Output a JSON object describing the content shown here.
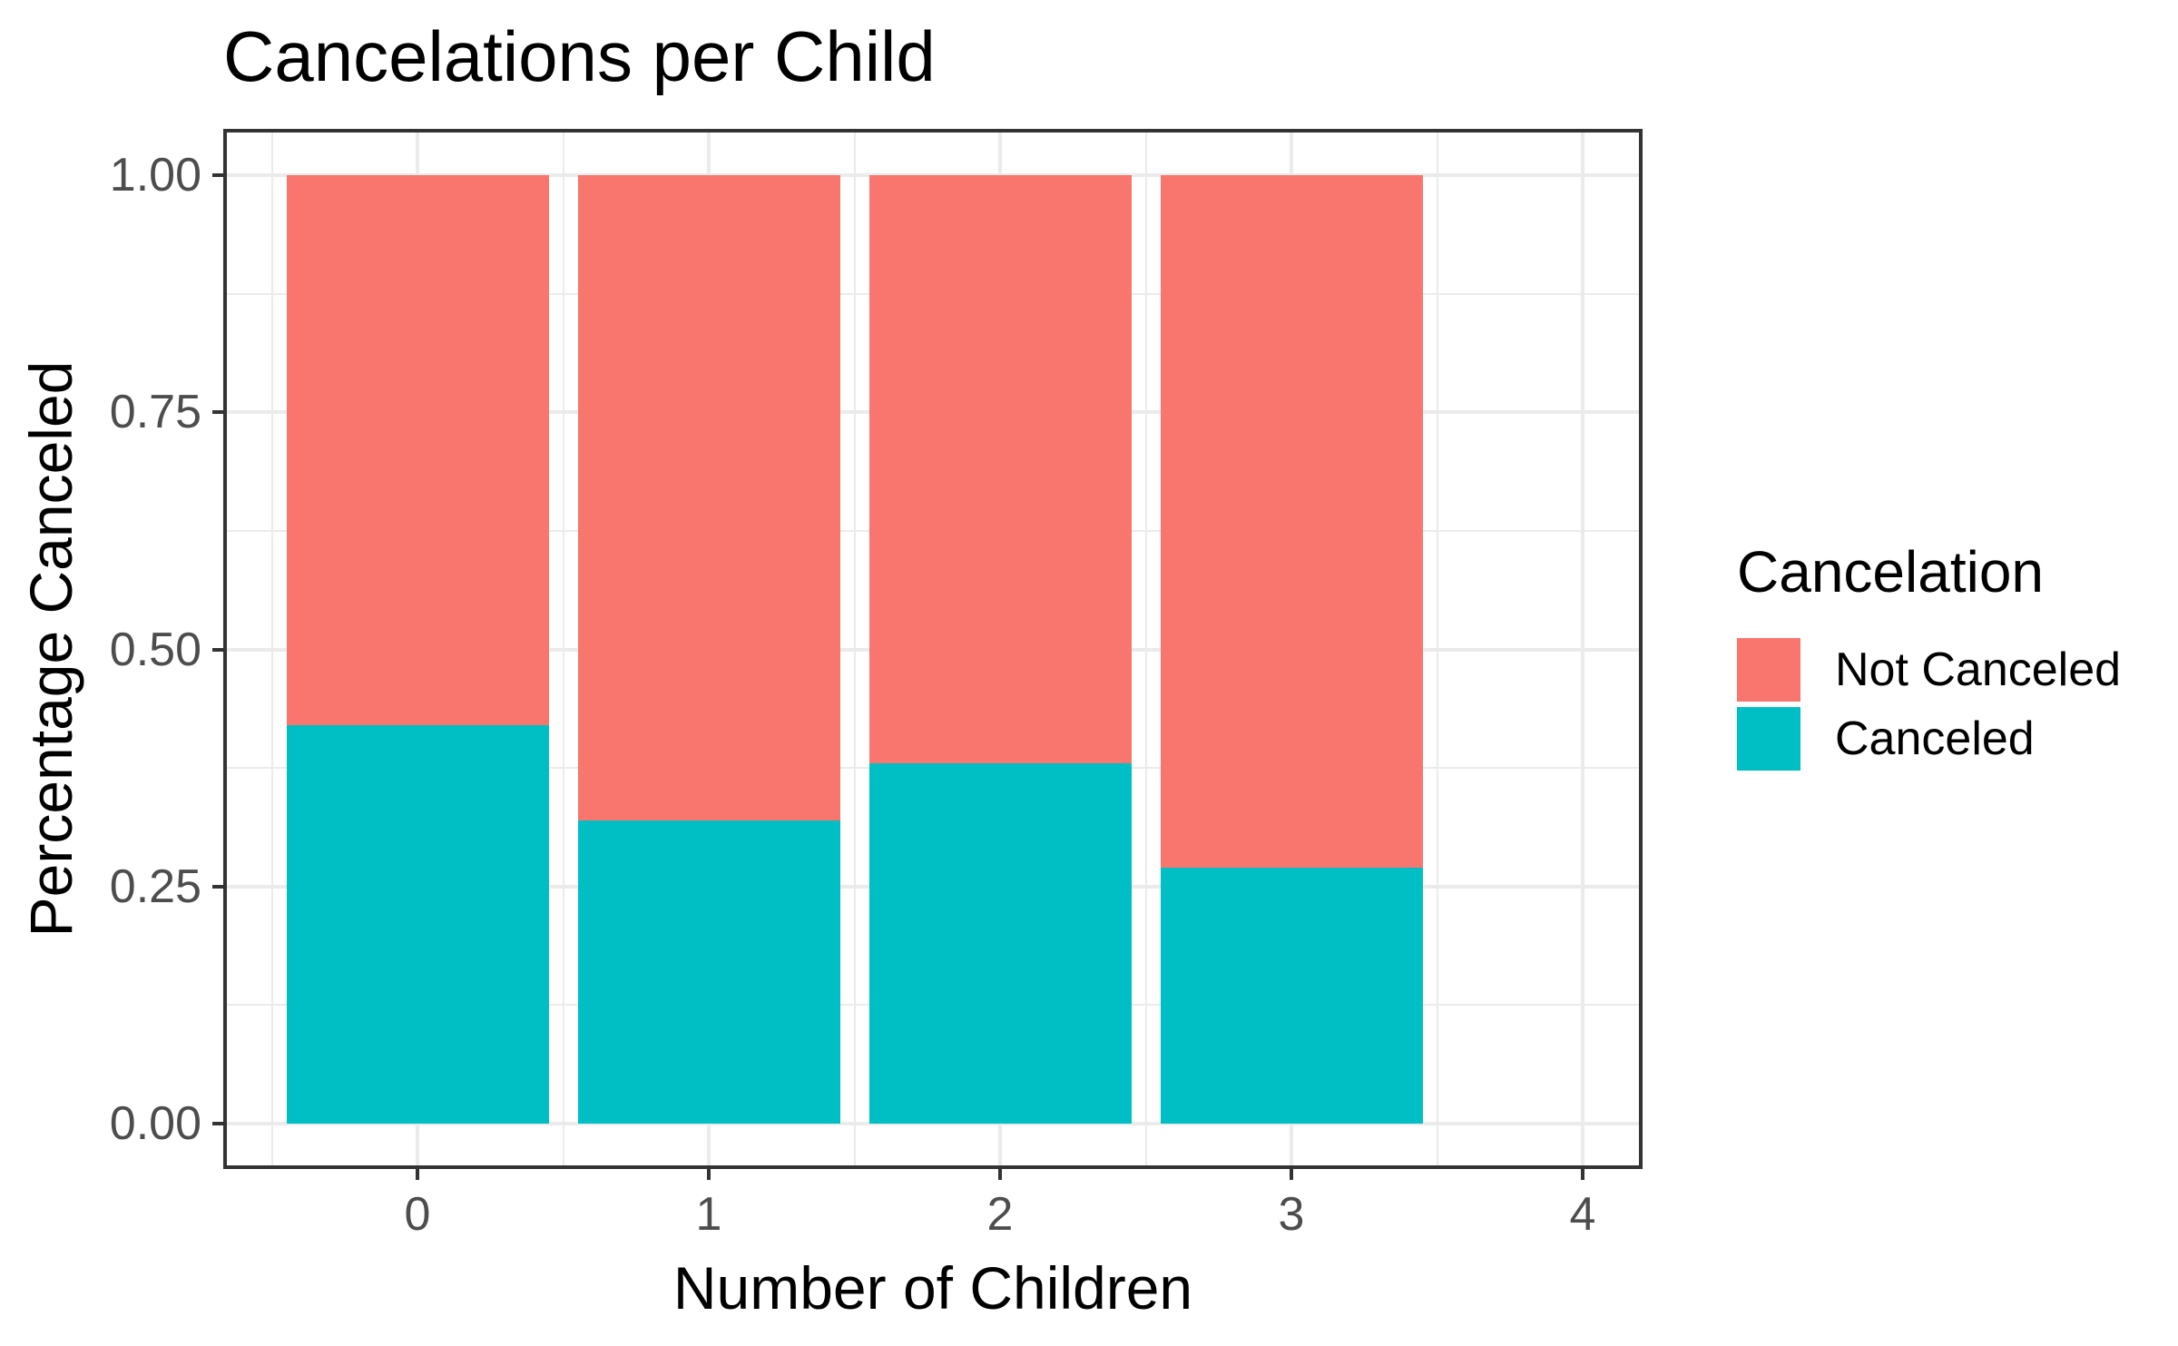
{
  "chart_data": {
    "type": "bar",
    "stacked": true,
    "title": "Cancelations per Child",
    "xlabel": "Number of Children",
    "ylabel": "Percentage Canceled",
    "legend": {
      "title": "Cancelation",
      "position": "right",
      "entries": [
        "Not Canceled",
        "Canceled"
      ]
    },
    "categories": [
      "0",
      "1",
      "2",
      "3",
      "4"
    ],
    "series": [
      {
        "name": "Not Canceled",
        "color": "#F8766D",
        "values": [
          0.58,
          0.68,
          0.62,
          0.73,
          null
        ]
      },
      {
        "name": "Canceled",
        "color": "#00BFC4",
        "values": [
          0.42,
          0.32,
          0.38,
          0.27,
          null
        ]
      }
    ],
    "ylim": [
      0,
      1
    ],
    "y_ticks": [
      {
        "value": 0.0,
        "label": "0.00"
      },
      {
        "value": 0.25,
        "label": "0.25"
      },
      {
        "value": 0.5,
        "label": "0.50"
      },
      {
        "value": 0.75,
        "label": "0.75"
      },
      {
        "value": 1.0,
        "label": "1.00"
      }
    ],
    "grid": "on",
    "colors": {
      "grid": "#EBEBEB",
      "panel_border": "#333333",
      "tick": "#333333",
      "axis_text": "#4D4D4D",
      "text": "#000000",
      "background": "#FFFFFF"
    }
  }
}
